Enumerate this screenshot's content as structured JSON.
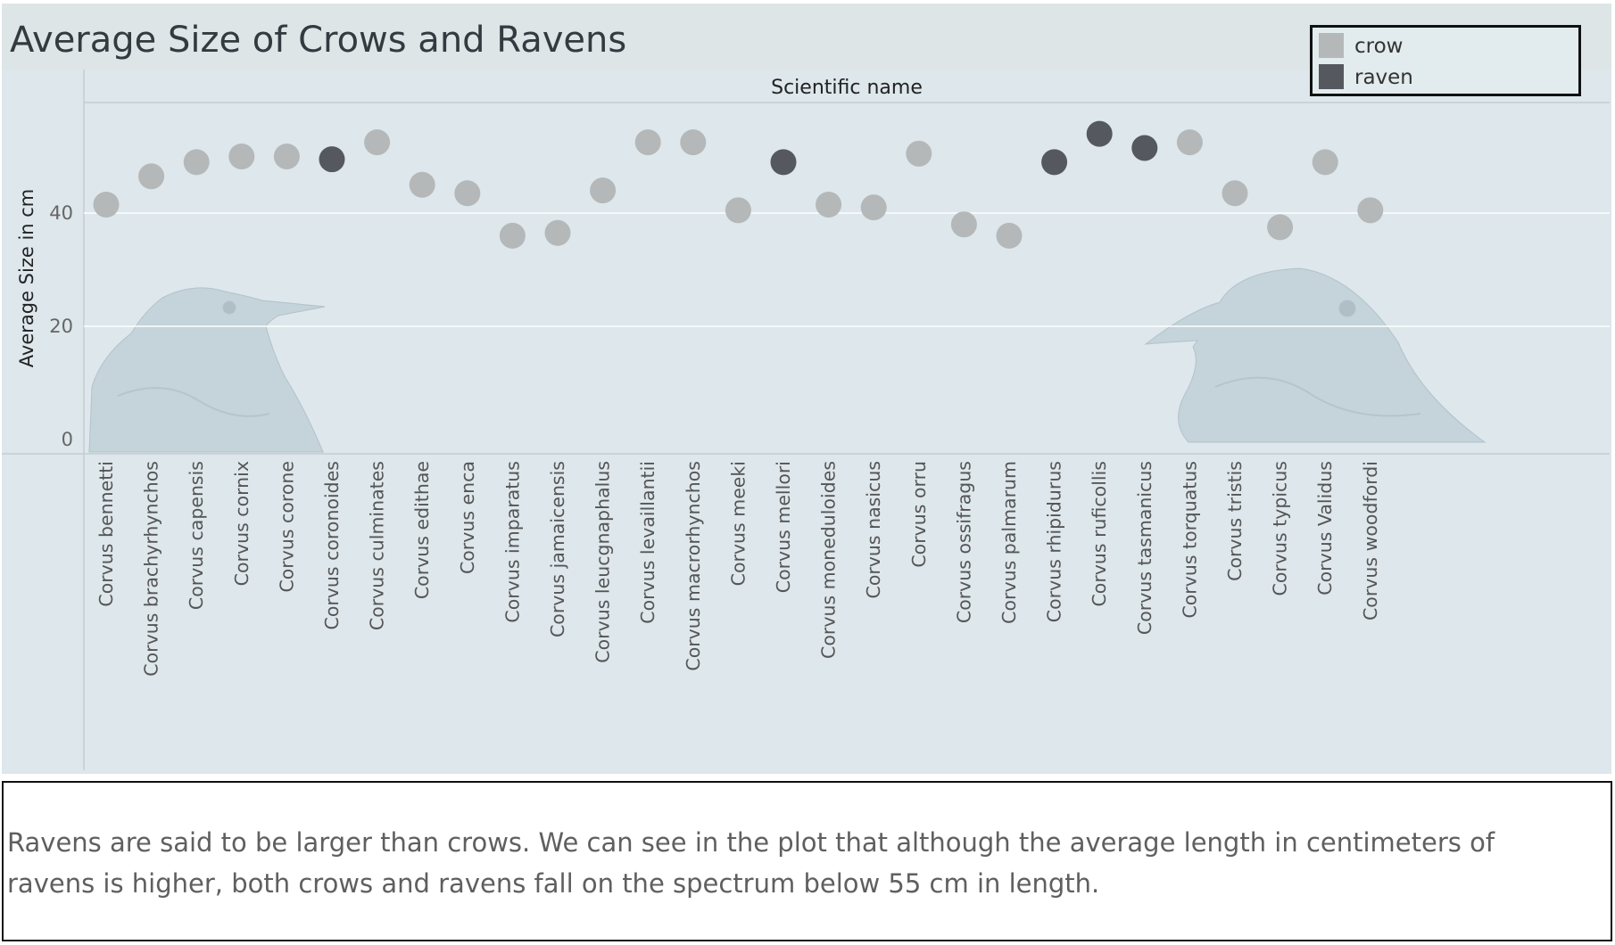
{
  "title": "Average Size of Crows and Ravens",
  "legend": {
    "items": [
      {
        "label": "crow",
        "color": "#b5b8b8"
      },
      {
        "label": "raven",
        "color": "#55585f"
      }
    ]
  },
  "caption": "Ravens are said to be larger than crows. We can see in the plot that although the average length in centimeters of ravens is higher, both crows and ravens fall on the spectrum below 55 cm in length.",
  "images": {
    "left": "crow-photo",
    "right": "raven-photo"
  },
  "chart_data": {
    "type": "scatter",
    "title": "Average Size of Crows and Ravens",
    "column_header": "Scientific name",
    "ylabel": "Average Size in cm",
    "ylim": [
      0,
      58
    ],
    "yticks": [
      0,
      20,
      40
    ],
    "grid": true,
    "legend_position": "top-right",
    "categories": [
      "Corvus bennetti",
      "Corvus brachyrhynchos",
      "Corvus capensis",
      "Corvus cornix",
      "Corvus corone",
      "Corvus coronoides",
      "Corvus culminates",
      "Corvus edithae",
      "Corvus enca",
      "Corvus imparatus",
      "Corvus jamaicensis",
      "Corvus leucgnaphalus",
      "Corvus levaillantii",
      "Corvus macrorhynchos",
      "Corvus meeki",
      "Corvus mellori",
      "Corvus moneduloides",
      "Corvus nasicus",
      "Corvus orru",
      "Corvus ossifragus",
      "Corvus palmarum",
      "Corvus rhipidurus",
      "Corvus ruficollis",
      "Corvus tasmanicus",
      "Corvus torquatus",
      "Corvus tristis",
      "Corvus typicus",
      "Corvus Validus",
      "Corvus woodfordi"
    ],
    "values": [
      41.5,
      46.5,
      49,
      50,
      50,
      49.5,
      52.5,
      45,
      43.5,
      36,
      36.5,
      44,
      52.5,
      52.5,
      40.5,
      49,
      41.5,
      41,
      50.5,
      38,
      36,
      49,
      54,
      51.5,
      52.5,
      43.5,
      37.5,
      49,
      40.5
    ],
    "groups": [
      "crow",
      "crow",
      "crow",
      "crow",
      "crow",
      "raven",
      "crow",
      "crow",
      "crow",
      "crow",
      "crow",
      "crow",
      "crow",
      "crow",
      "crow",
      "raven",
      "crow",
      "crow",
      "crow",
      "crow",
      "crow",
      "raven",
      "raven",
      "raven",
      "crow",
      "crow",
      "crow",
      "crow",
      "crow"
    ]
  }
}
